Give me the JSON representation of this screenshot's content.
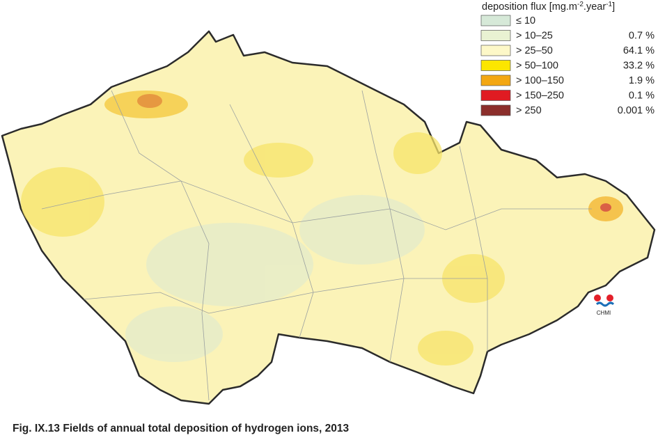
{
  "legend": {
    "title": {
      "text": "deposition flux [mg.m",
      "sup1": "-2",
      "mid": ".year",
      "sup2": "-1",
      "end": "]"
    },
    "items": [
      {
        "label": "≤ 10",
        "color": "#d6e9d8"
      },
      {
        "label": "> 10–25",
        "percent": "0.7 %",
        "color": "#e9f2d2"
      },
      {
        "label": "> 25–50",
        "percent": "64.1 %",
        "color": "#fdf8c8"
      },
      {
        "label": "> 50–100",
        "percent": "33.2 %",
        "color": "#fce600"
      },
      {
        "label": "> 100–150",
        "percent": "1.9 %",
        "color": "#f3a712"
      },
      {
        "label": "> 150–250",
        "percent": "0.1 %",
        "color": "#e01b22"
      },
      {
        "label": "> 250",
        "percent": "0.001 %",
        "color": "#8b2e2b"
      }
    ]
  },
  "logo": {
    "text": "CHMI"
  },
  "caption": "Fig. IX.13  Fields of annual total deposition of hydrogen ions, 2013"
}
